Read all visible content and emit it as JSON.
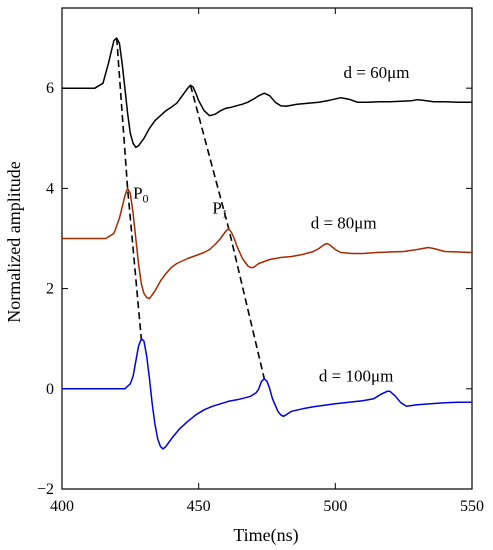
{
  "chart_data": {
    "type": "line",
    "title": "",
    "xlabel": "Time(ns)",
    "ylabel": "Normalized amplitude",
    "xlim": [
      400,
      550
    ],
    "ylim": [
      -2,
      7.6
    ],
    "xticks": [
      400,
      450,
      500,
      550
    ],
    "yticks": [
      -2,
      0,
      2,
      4,
      6
    ],
    "grid": false,
    "legend": "none",
    "series": [
      {
        "color": "#000000",
        "label": "d = 60μm",
        "points": [
          [
            400,
            6.0
          ],
          [
            412,
            6.0
          ],
          [
            415,
            6.1
          ],
          [
            417,
            6.5
          ],
          [
            419,
            6.95
          ],
          [
            420,
            7.0
          ],
          [
            421,
            6.9
          ],
          [
            422,
            6.5
          ],
          [
            423,
            6.0
          ],
          [
            424,
            5.5
          ],
          [
            425,
            5.1
          ],
          [
            426,
            4.9
          ],
          [
            427,
            4.82
          ],
          [
            428,
            4.85
          ],
          [
            430,
            5.0
          ],
          [
            432,
            5.2
          ],
          [
            434,
            5.35
          ],
          [
            436,
            5.45
          ],
          [
            438,
            5.55
          ],
          [
            440,
            5.62
          ],
          [
            442,
            5.7
          ],
          [
            444,
            5.85
          ],
          [
            446,
            6.0
          ],
          [
            447,
            6.06
          ],
          [
            448,
            6.02
          ],
          [
            449,
            5.9
          ],
          [
            450,
            5.75
          ],
          [
            452,
            5.55
          ],
          [
            454,
            5.45
          ],
          [
            456,
            5.48
          ],
          [
            458,
            5.55
          ],
          [
            460,
            5.6
          ],
          [
            462,
            5.62
          ],
          [
            464,
            5.65
          ],
          [
            466,
            5.68
          ],
          [
            468,
            5.72
          ],
          [
            470,
            5.78
          ],
          [
            472,
            5.85
          ],
          [
            474,
            5.9
          ],
          [
            476,
            5.85
          ],
          [
            478,
            5.72
          ],
          [
            480,
            5.65
          ],
          [
            482,
            5.64
          ],
          [
            486,
            5.68
          ],
          [
            490,
            5.7
          ],
          [
            494,
            5.72
          ],
          [
            498,
            5.76
          ],
          [
            502,
            5.81
          ],
          [
            505,
            5.78
          ],
          [
            508,
            5.72
          ],
          [
            512,
            5.72
          ],
          [
            516,
            5.73
          ],
          [
            520,
            5.73
          ],
          [
            524,
            5.74
          ],
          [
            528,
            5.75
          ],
          [
            530,
            5.77
          ],
          [
            532,
            5.76
          ],
          [
            536,
            5.73
          ],
          [
            540,
            5.73
          ],
          [
            545,
            5.72
          ],
          [
            550,
            5.72
          ]
        ]
      },
      {
        "color": "#a52a00",
        "label": "d = 80μm",
        "points": [
          [
            400,
            3.0
          ],
          [
            416,
            3.0
          ],
          [
            419,
            3.1
          ],
          [
            421,
            3.4
          ],
          [
            423,
            3.85
          ],
          [
            424,
            4.0
          ],
          [
            425,
            3.9
          ],
          [
            426,
            3.5
          ],
          [
            427,
            3.0
          ],
          [
            428,
            2.5
          ],
          [
            429,
            2.1
          ],
          [
            430,
            1.9
          ],
          [
            431,
            1.82
          ],
          [
            432,
            1.8
          ],
          [
            434,
            1.95
          ],
          [
            436,
            2.15
          ],
          [
            438,
            2.3
          ],
          [
            440,
            2.42
          ],
          [
            442,
            2.5
          ],
          [
            444,
            2.55
          ],
          [
            446,
            2.6
          ],
          [
            448,
            2.64
          ],
          [
            450,
            2.68
          ],
          [
            452,
            2.72
          ],
          [
            454,
            2.78
          ],
          [
            456,
            2.88
          ],
          [
            458,
            3.0
          ],
          [
            460,
            3.15
          ],
          [
            461,
            3.2
          ],
          [
            462,
            3.12
          ],
          [
            463,
            3.0
          ],
          [
            464,
            2.85
          ],
          [
            466,
            2.6
          ],
          [
            468,
            2.45
          ],
          [
            469,
            2.42
          ],
          [
            470,
            2.42
          ],
          [
            472,
            2.5
          ],
          [
            476,
            2.58
          ],
          [
            480,
            2.62
          ],
          [
            484,
            2.64
          ],
          [
            488,
            2.68
          ],
          [
            492,
            2.74
          ],
          [
            494,
            2.8
          ],
          [
            496,
            2.88
          ],
          [
            497,
            2.9
          ],
          [
            498,
            2.87
          ],
          [
            500,
            2.78
          ],
          [
            502,
            2.72
          ],
          [
            506,
            2.7
          ],
          [
            510,
            2.7
          ],
          [
            515,
            2.72
          ],
          [
            520,
            2.73
          ],
          [
            525,
            2.74
          ],
          [
            530,
            2.78
          ],
          [
            534,
            2.82
          ],
          [
            536,
            2.8
          ],
          [
            540,
            2.74
          ],
          [
            545,
            2.73
          ],
          [
            550,
            2.72
          ]
        ]
      },
      {
        "color": "#0000dd",
        "label": "d = 100μm",
        "points": [
          [
            400,
            0.0
          ],
          [
            423,
            0.0
          ],
          [
            425,
            0.1
          ],
          [
            426,
            0.25
          ],
          [
            427,
            0.55
          ],
          [
            428,
            0.85
          ],
          [
            429,
            1.0
          ],
          [
            430,
            0.95
          ],
          [
            431,
            0.65
          ],
          [
            432,
            0.2
          ],
          [
            433,
            -0.3
          ],
          [
            434,
            -0.7
          ],
          [
            435,
            -1.0
          ],
          [
            436,
            -1.15
          ],
          [
            437,
            -1.2
          ],
          [
            438,
            -1.15
          ],
          [
            440,
            -1.0
          ],
          [
            443,
            -0.8
          ],
          [
            446,
            -0.65
          ],
          [
            449,
            -0.52
          ],
          [
            452,
            -0.42
          ],
          [
            455,
            -0.35
          ],
          [
            458,
            -0.3
          ],
          [
            461,
            -0.25
          ],
          [
            464,
            -0.22
          ],
          [
            467,
            -0.18
          ],
          [
            469,
            -0.15
          ],
          [
            471,
            -0.08
          ],
          [
            472,
            0.0
          ],
          [
            473,
            0.15
          ],
          [
            474,
            0.2
          ],
          [
            475,
            0.15
          ],
          [
            476,
            0.0
          ],
          [
            477,
            -0.2
          ],
          [
            479,
            -0.45
          ],
          [
            480,
            -0.52
          ],
          [
            481,
            -0.55
          ],
          [
            482,
            -0.52
          ],
          [
            484,
            -0.45
          ],
          [
            488,
            -0.4
          ],
          [
            492,
            -0.36
          ],
          [
            496,
            -0.33
          ],
          [
            500,
            -0.3
          ],
          [
            505,
            -0.27
          ],
          [
            510,
            -0.24
          ],
          [
            514,
            -0.2
          ],
          [
            517,
            -0.1
          ],
          [
            519,
            -0.05
          ],
          [
            520,
            -0.05
          ],
          [
            522,
            -0.15
          ],
          [
            524,
            -0.28
          ],
          [
            526,
            -0.35
          ],
          [
            530,
            -0.32
          ],
          [
            535,
            -0.3
          ],
          [
            540,
            -0.28
          ],
          [
            545,
            -0.27
          ],
          [
            550,
            -0.27
          ]
        ]
      }
    ],
    "dashed_lines": [
      {
        "name": "P₀ trajectory",
        "color": "#000000",
        "points": [
          [
            420,
            7.0
          ],
          [
            424,
            4.0
          ],
          [
            429,
            1.0
          ]
        ]
      },
      {
        "name": "P₁ trajectory",
        "color": "#000000",
        "points": [
          [
            447,
            6.06
          ],
          [
            461,
            3.2
          ],
          [
            474,
            0.2
          ]
        ]
      }
    ],
    "annotations": [
      {
        "base": "P",
        "sub": "0",
        "x": 426,
        "y": 3.8
      },
      {
        "base": "P",
        "sub": "1",
        "x": 455,
        "y": 3.5
      },
      {
        "text": "d = 60μm",
        "x": 503,
        "y": 6.2
      },
      {
        "text": "d = 80μm",
        "x": 491,
        "y": 3.2
      },
      {
        "text": "d = 100μm",
        "x": 494,
        "y": 0.15
      }
    ]
  }
}
